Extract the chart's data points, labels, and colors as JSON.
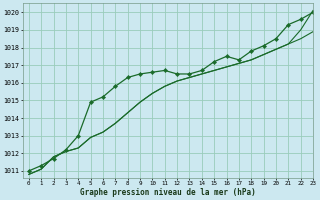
{
  "title": "Graphe pression niveau de la mer (hPa)",
  "bg_color": "#cce8f0",
  "grid_color": "#99ccbb",
  "line_color": "#1a6b2a",
  "xlim": [
    -0.5,
    23
  ],
  "ylim": [
    1010.6,
    1020.5
  ],
  "yticks": [
    1011,
    1012,
    1013,
    1014,
    1015,
    1016,
    1017,
    1018,
    1019,
    1020
  ],
  "xticks": [
    0,
    1,
    2,
    3,
    4,
    5,
    6,
    7,
    8,
    9,
    10,
    11,
    12,
    13,
    14,
    15,
    16,
    17,
    18,
    19,
    20,
    21,
    22,
    23
  ],
  "series1_x": [
    0,
    1,
    2,
    3,
    4,
    5,
    6,
    7,
    8,
    9,
    10,
    11,
    12,
    13,
    14,
    15,
    16,
    17,
    18,
    19,
    20,
    21,
    22,
    23
  ],
  "series1_y": [
    1011.0,
    1011.3,
    1011.7,
    1012.2,
    1013.0,
    1014.9,
    1015.2,
    1015.8,
    1016.3,
    1016.5,
    1016.6,
    1016.7,
    1016.5,
    1016.5,
    1016.7,
    1017.2,
    1017.5,
    1017.3,
    1017.8,
    1018.1,
    1018.5,
    1019.3,
    1019.6,
    1020.0
  ],
  "series2_x": [
    0,
    1,
    2,
    3,
    4,
    5,
    6,
    7,
    8,
    9,
    10,
    11,
    12,
    13,
    14,
    15,
    16,
    17,
    18,
    19,
    20,
    21,
    22,
    23
  ],
  "series2_y": [
    1010.8,
    1011.1,
    1011.8,
    1012.1,
    1012.3,
    1012.9,
    1013.2,
    1013.7,
    1014.3,
    1014.9,
    1015.4,
    1015.8,
    1016.1,
    1016.3,
    1016.5,
    1016.7,
    1016.9,
    1017.1,
    1017.3,
    1017.6,
    1017.9,
    1018.2,
    1018.5,
    1018.9
  ],
  "series3_x": [
    0,
    1,
    2,
    3,
    4,
    5,
    6,
    7,
    8,
    9,
    10,
    11,
    12,
    13,
    14,
    15,
    16,
    17,
    18,
    19,
    20,
    21,
    22,
    23
  ],
  "series3_y": [
    1010.8,
    1011.1,
    1011.8,
    1012.1,
    1012.3,
    1012.9,
    1013.2,
    1013.7,
    1014.3,
    1014.9,
    1015.4,
    1015.8,
    1016.1,
    1016.3,
    1016.5,
    1016.7,
    1016.9,
    1017.1,
    1017.3,
    1017.6,
    1017.9,
    1018.2,
    1019.0,
    1020.1
  ],
  "figsize": [
    3.2,
    2.0
  ],
  "dpi": 100
}
